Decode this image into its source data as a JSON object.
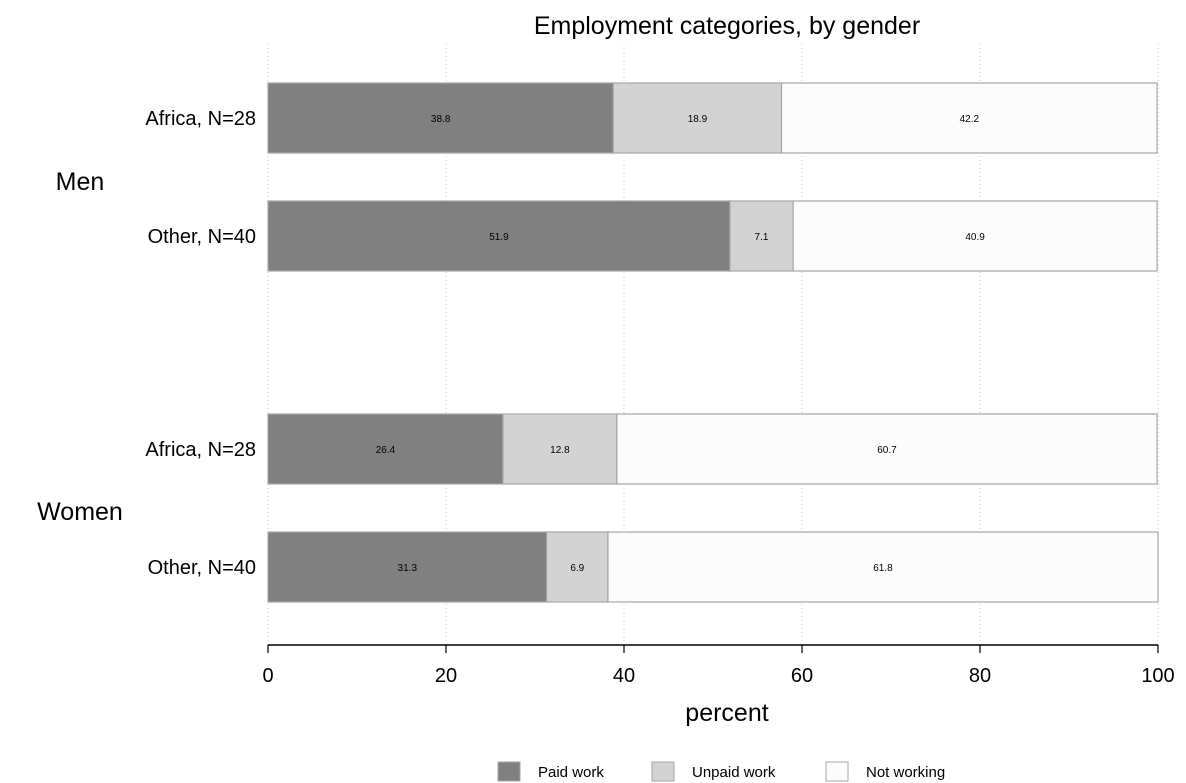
{
  "chart_data": {
    "type": "bar",
    "orientation": "horizontal",
    "stacked": true,
    "title": "Employment categories, by gender",
    "xlabel": "percent",
    "xlim": [
      0,
      100
    ],
    "xticks": [
      0,
      20,
      40,
      60,
      80,
      100
    ],
    "grid": "vertical dotted",
    "legend_position": "bottom",
    "groups": [
      {
        "label": "Men",
        "rows": [
          {
            "label": "Africa, N=28",
            "values": [
              38.8,
              18.9,
              42.2
            ]
          },
          {
            "label": "Other, N=40",
            "values": [
              51.9,
              7.1,
              40.9
            ]
          }
        ]
      },
      {
        "label": "Women",
        "rows": [
          {
            "label": "Africa, N=28",
            "values": [
              26.4,
              12.8,
              60.7
            ]
          },
          {
            "label": "Other, N=40",
            "values": [
              31.3,
              6.9,
              61.8
            ]
          }
        ]
      }
    ],
    "series": [
      {
        "name": "Paid work",
        "color": "#808080"
      },
      {
        "name": "Unpaid work",
        "color": "#d3d3d3"
      },
      {
        "name": "Not working",
        "color": "#fcfcfc"
      }
    ]
  }
}
